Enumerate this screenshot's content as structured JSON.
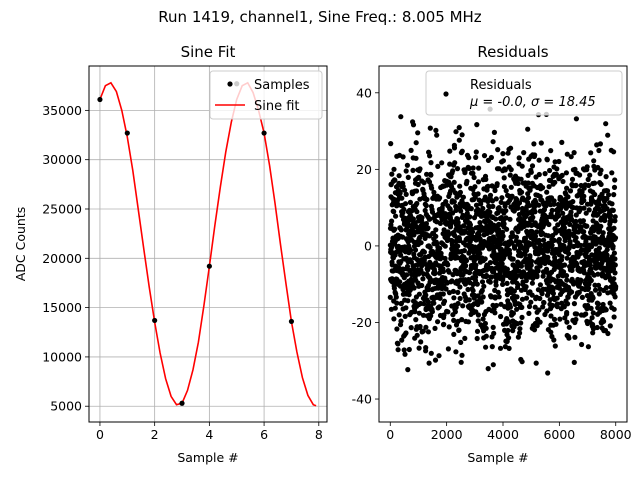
{
  "suptitle": "Run 1419, channel1, Sine Freq.: 8.005 MHz",
  "chart_data": [
    {
      "type": "line",
      "title": "Sine Fit",
      "xlabel": "Sample #",
      "ylabel": "ADC Counts",
      "xlim": [
        -0.4,
        8.3
      ],
      "ylim": [
        3400,
        39500
      ],
      "xticks": [
        0,
        2,
        4,
        6,
        8
      ],
      "yticks": [
        5000,
        10000,
        15000,
        20000,
        25000,
        30000,
        35000
      ],
      "grid": true,
      "legend_position": "top-right",
      "series": [
        {
          "name": "Samples",
          "style": "points",
          "color": "#000000",
          "x": [
            0,
            1,
            2,
            3,
            4,
            5,
            6,
            7
          ],
          "y": [
            36100,
            32700,
            13700,
            5300,
            19200,
            37700,
            32700,
            13600
          ]
        },
        {
          "name": "Sine fit",
          "style": "line",
          "color": "#ff0000",
          "x": [
            0,
            0.2,
            0.4,
            0.6,
            0.8,
            1.0,
            1.2,
            1.4,
            1.6,
            1.8,
            2.0,
            2.2,
            2.4,
            2.6,
            2.8,
            3.0,
            3.2,
            3.4,
            3.6,
            3.8,
            4.0,
            4.2,
            4.4,
            4.6,
            4.8,
            5.0,
            5.2,
            5.4,
            5.6,
            5.8,
            6.0,
            6.2,
            6.4,
            6.6,
            6.8,
            7.0,
            7.2,
            7.4,
            7.6,
            7.8,
            7.9
          ],
          "y": [
            36100,
            37500,
            37800,
            36900,
            35000,
            32300,
            28900,
            25000,
            21000,
            17100,
            13500,
            10400,
            7800,
            6000,
            5150,
            5300,
            6600,
            8700,
            11500,
            15200,
            19200,
            23300,
            27200,
            30800,
            33800,
            36100,
            37500,
            37800,
            36800,
            35000,
            32700,
            29400,
            25600,
            21400,
            17400,
            13600,
            10500,
            7900,
            6100,
            5150,
            5050
          ]
        }
      ]
    },
    {
      "type": "scatter",
      "title": "Residuals",
      "xlabel": "Sample #",
      "xlim": [
        -400,
        8400
      ],
      "ylim": [
        -46,
        47
      ],
      "xticks": [
        0,
        2000,
        4000,
        6000,
        8000
      ],
      "yticks": [
        -40,
        -20,
        0,
        20,
        40
      ],
      "grid": false,
      "legend_position": "top-right",
      "legend_label": "Residuals",
      "legend_stats": "μ = -0.0, σ = 18.45",
      "series": [
        {
          "name": "Residuals",
          "color": "#000000",
          "n_points": 8000,
          "x_range": [
            0,
            7999
          ],
          "y_range": [
            -42,
            42
          ]
        }
      ]
    }
  ]
}
